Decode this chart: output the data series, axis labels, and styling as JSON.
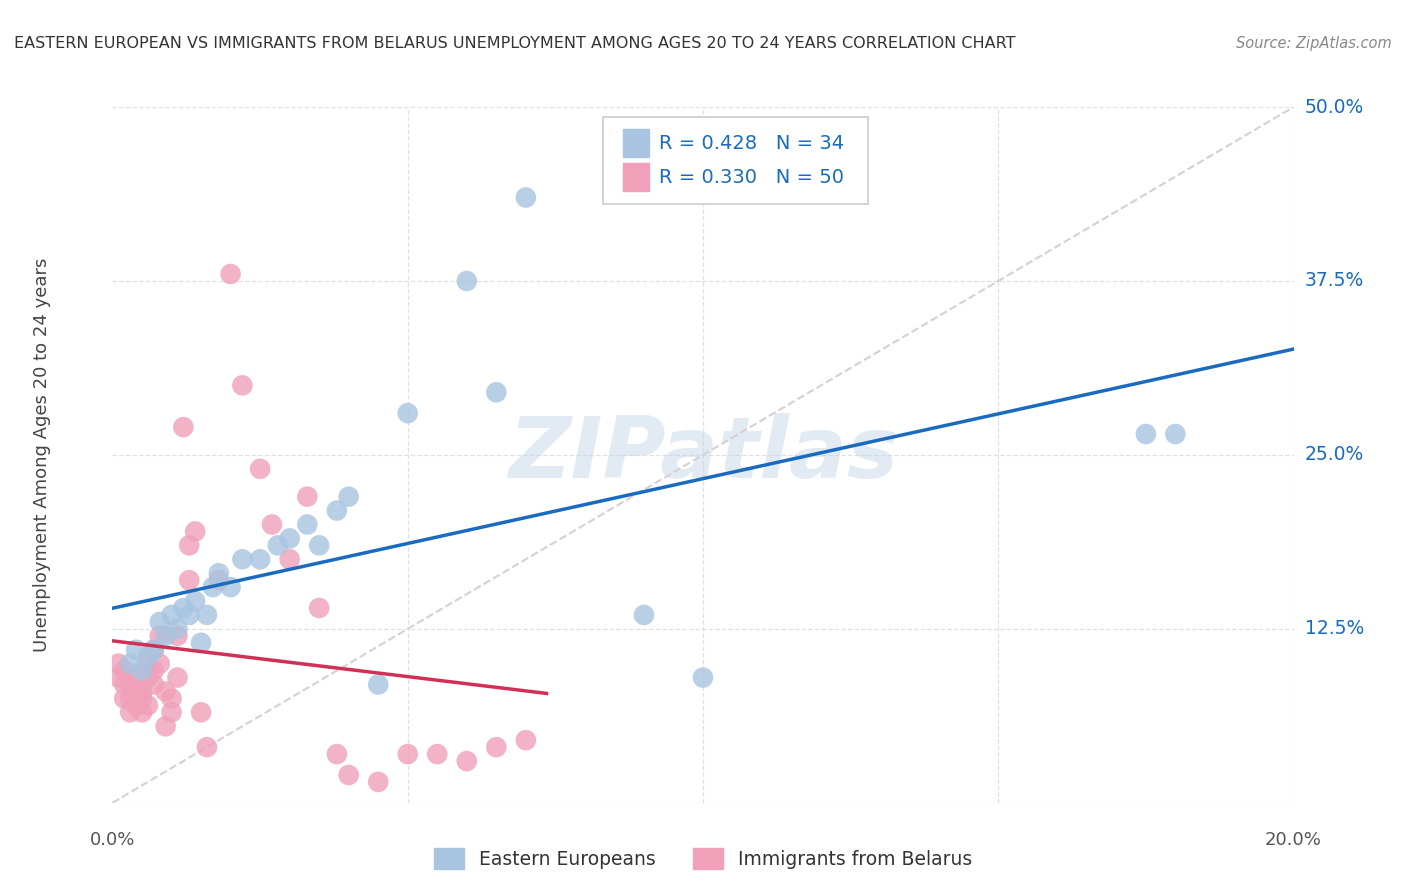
{
  "title": "EASTERN EUROPEAN VS IMMIGRANTS FROM BELARUS UNEMPLOYMENT AMONG AGES 20 TO 24 YEARS CORRELATION CHART",
  "source": "Source: ZipAtlas.com",
  "ylabel": "Unemployment Among Ages 20 to 24 years",
  "xlim": [
    0.0,
    0.2
  ],
  "ylim": [
    0.0,
    0.5
  ],
  "ytick_values": [
    0.0,
    0.125,
    0.25,
    0.375,
    0.5
  ],
  "ytick_labels": [
    "",
    "12.5%",
    "25.0%",
    "37.5%",
    "50.0%"
  ],
  "xtick_labels_left": "0.0%",
  "xtick_labels_right": "20.0%",
  "legend_R1": "R = 0.428",
  "legend_N1": "N = 34",
  "legend_R2": "R = 0.330",
  "legend_N2": "N = 50",
  "legend_bottom1": "Eastern Europeans",
  "legend_bottom2": "Immigrants from Belarus",
  "blue_scatter_color": "#a8c4e0",
  "pink_scatter_color": "#f0a0b8",
  "blue_line_color": "#1a6bbf",
  "pink_line_color": "#d03055",
  "diag_color": "#d8d0d0",
  "grid_color": "#e0e0e0",
  "bg_color": "#ffffff",
  "watermark": "ZIPatlas",
  "title_color": "#333333",
  "source_color": "#888888",
  "ylabel_color": "#444444",
  "tick_label_color": "#1a6bbf",
  "blue_x": [
    0.003,
    0.004,
    0.005,
    0.006,
    0.007,
    0.008,
    0.009,
    0.01,
    0.011,
    0.012,
    0.013,
    0.014,
    0.015,
    0.016,
    0.017,
    0.018,
    0.02,
    0.022,
    0.025,
    0.028,
    0.03,
    0.033,
    0.035,
    0.038,
    0.04,
    0.045,
    0.05,
    0.06,
    0.065,
    0.07,
    0.09,
    0.1,
    0.175,
    0.18
  ],
  "blue_y": [
    0.1,
    0.11,
    0.095,
    0.105,
    0.11,
    0.13,
    0.12,
    0.135,
    0.125,
    0.14,
    0.135,
    0.145,
    0.115,
    0.135,
    0.155,
    0.165,
    0.155,
    0.175,
    0.175,
    0.185,
    0.19,
    0.2,
    0.185,
    0.21,
    0.22,
    0.085,
    0.28,
    0.375,
    0.295,
    0.435,
    0.135,
    0.09,
    0.265,
    0.265
  ],
  "pink_x": [
    0.001,
    0.001,
    0.002,
    0.002,
    0.002,
    0.003,
    0.003,
    0.003,
    0.004,
    0.004,
    0.004,
    0.005,
    0.005,
    0.005,
    0.006,
    0.006,
    0.006,
    0.007,
    0.007,
    0.007,
    0.008,
    0.008,
    0.009,
    0.009,
    0.01,
    0.01,
    0.011,
    0.011,
    0.012,
    0.013,
    0.013,
    0.014,
    0.015,
    0.016,
    0.018,
    0.02,
    0.022,
    0.025,
    0.027,
    0.03,
    0.033,
    0.035,
    0.038,
    0.04,
    0.045,
    0.05,
    0.055,
    0.06,
    0.065,
    0.07
  ],
  "pink_y": [
    0.09,
    0.1,
    0.075,
    0.085,
    0.095,
    0.065,
    0.075,
    0.085,
    0.07,
    0.08,
    0.09,
    0.065,
    0.075,
    0.08,
    0.07,
    0.09,
    0.1,
    0.095,
    0.085,
    0.11,
    0.1,
    0.12,
    0.055,
    0.08,
    0.065,
    0.075,
    0.12,
    0.09,
    0.27,
    0.16,
    0.185,
    0.195,
    0.065,
    0.04,
    0.16,
    0.38,
    0.3,
    0.24,
    0.2,
    0.175,
    0.22,
    0.14,
    0.035,
    0.02,
    0.015,
    0.035,
    0.035,
    0.03,
    0.04,
    0.045
  ]
}
